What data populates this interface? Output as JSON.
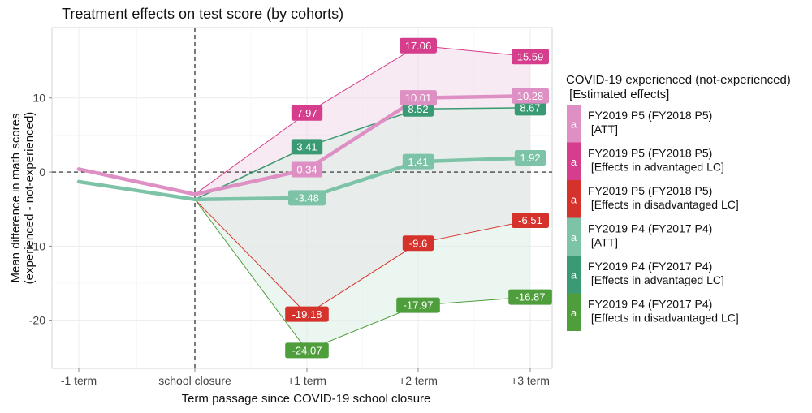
{
  "chart_data": {
    "type": "line",
    "title": "Treatment effects on test score (by cohorts)",
    "xlabel": "Term passage since COVID-19 school closure",
    "ylabel": [
      "Mean difference in math scores",
      "(experienced - not-experienced)"
    ],
    "categories": [
      "-1 term",
      "school closure",
      "+1 term",
      "+2 term",
      "+3 term"
    ],
    "ylim": [
      -26.5,
      19.5
    ],
    "yticks": [
      -20,
      -10,
      0,
      10
    ],
    "ytick_labels": [
      "-20",
      "-10",
      "0",
      "10"
    ],
    "grid": true,
    "reference_lines": {
      "x_category": "school closure",
      "y": 0,
      "style": "dashed"
    },
    "series": [
      {
        "name": "FY2019 P5 (FY2018 P5)\n [Effects in advantaged LC]",
        "color": "#d63d8c",
        "width": 1,
        "values": [
          null,
          -3.0,
          7.97,
          17.06,
          15.59
        ],
        "labels": [
          null,
          null,
          "7.97",
          "17.06",
          "15.59"
        ]
      },
      {
        "name": "FY2019 P5 (FY2018 P5)\n [Effects in disadvantaged LC]",
        "color": "#d6322c",
        "width": 1,
        "values": [
          null,
          -3.7,
          -19.18,
          -9.6,
          -6.51
        ],
        "labels": [
          null,
          null,
          "-19.18",
          "-9.6",
          "-6.51"
        ]
      },
      {
        "name": "FY2019 P4 (FY2017 P4)\n [Effects in advantaged LC]",
        "color": "#3a9a73",
        "width": 1.5,
        "values": [
          null,
          -3.7,
          3.41,
          8.52,
          8.67
        ],
        "labels": [
          null,
          null,
          "3.41",
          "8.52",
          "8.67"
        ]
      },
      {
        "name": "FY2019 P4 (FY2017 P4)\n [Effects in disadvantaged LC]",
        "color": "#4e9e3c",
        "width": 1,
        "values": [
          null,
          -3.7,
          -24.07,
          -17.97,
          -16.87
        ],
        "labels": [
          null,
          null,
          "-24.07",
          "-17.97",
          "-16.87"
        ]
      },
      {
        "name": "FY2019 P4 (FY2017 P4)\n [ATT]",
        "color": "#7cc3a7",
        "width": 4.5,
        "values": [
          -1.3,
          -3.7,
          -3.48,
          1.41,
          1.92
        ],
        "labels": [
          null,
          null,
          "-3.48",
          "1.41",
          "1.92"
        ]
      },
      {
        "name": "FY2019 P5 (FY2018 P5)\n [ATT]",
        "color": "#de8fc4",
        "width": 4.5,
        "values": [
          0.4,
          -3.0,
          0.34,
          10.01,
          10.28
        ],
        "labels": [
          null,
          null,
          "0.34",
          "10.01",
          "10.28"
        ]
      }
    ],
    "ribbons": [
      {
        "upper_series": 0,
        "lower_series": 1,
        "fill": "#f0d8e8"
      },
      {
        "upper_series": 2,
        "lower_series": 3,
        "fill": "#ddeee6"
      }
    ],
    "legend": {
      "title": [
        "COVID-19 experienced (not-experienced)",
        " [Estimated effects]"
      ],
      "placement": "right",
      "key_glyph": "a",
      "entries": [
        {
          "label": [
            "FY2019 P5 (FY2018 P5)",
            " [ATT]"
          ],
          "color": "#de8fc4"
        },
        {
          "label": [
            "FY2019 P5 (FY2018 P5)",
            " [Effects in advantaged LC]"
          ],
          "color": "#d63d8c"
        },
        {
          "label": [
            "FY2019 P5 (FY2018 P5)",
            " [Effects in disadvantaged LC]"
          ],
          "color": "#d6322c"
        },
        {
          "label": [
            "FY2019 P4 (FY2017 P4)",
            " [ATT]"
          ],
          "color": "#7cc3a7"
        },
        {
          "label": [
            "FY2019 P4 (FY2017 P4)",
            " [Effects in advantaged LC]"
          ],
          "color": "#3a9a73"
        },
        {
          "label": [
            "FY2019 P4 (FY2017 P4)",
            " [Effects in disadvantaged LC]"
          ],
          "color": "#4e9e3c"
        }
      ]
    }
  }
}
